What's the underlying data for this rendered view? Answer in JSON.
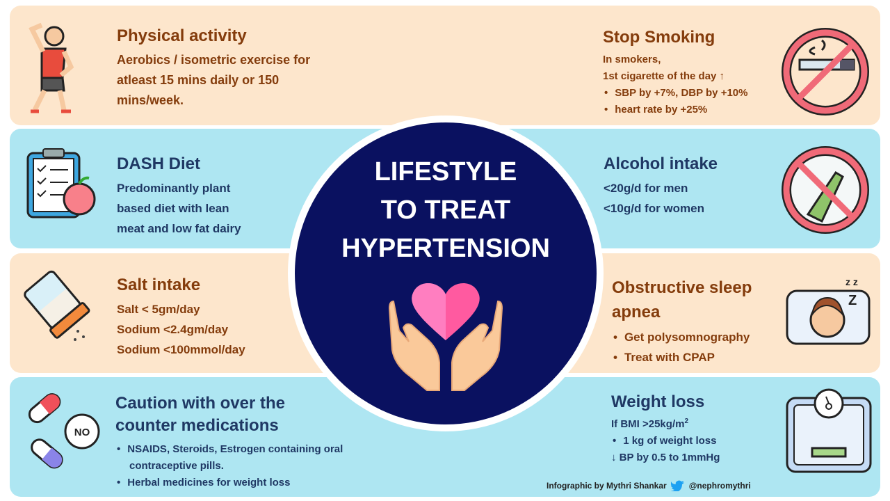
{
  "center": {
    "lines": [
      "LIFESTYLE",
      "TO TREAT",
      "HYPERTENSION"
    ]
  },
  "physical": {
    "title": "Physical activity",
    "lines": [
      "Aerobics / isometric exercise for",
      "atleast 15 mins daily or 150",
      "mins/week."
    ]
  },
  "smoking": {
    "title": "Stop Smoking",
    "lines": [
      "In smokers,",
      "1st cigarette of the day ↑"
    ],
    "bullets": [
      "SBP by +7%, DBP by +10%",
      "heart rate by +25%"
    ]
  },
  "dash": {
    "title": "DASH Diet",
    "lines": [
      "Predominantly plant",
      "based diet with lean",
      "meat and low fat dairy"
    ]
  },
  "alcohol": {
    "title": "Alcohol intake",
    "lines": [
      "<20g/d for men",
      "<10g/d for women"
    ]
  },
  "salt": {
    "title": "Salt intake",
    "lines": [
      "Salt < 5gm/day",
      "Sodium <2.4gm/day",
      "Sodium <100mmol/day"
    ]
  },
  "sleep": {
    "title_lines": [
      "Obstructive sleep",
      "apnea"
    ],
    "bullets": [
      "Get polysomnography",
      "Treat with CPAP"
    ]
  },
  "meds": {
    "title_lines": [
      "Caution with over the",
      "counter medications"
    ],
    "bullets": [
      "NSAIDS, Steroids, Estrogen containing oral",
      "Herbal medicines for weight loss"
    ],
    "bullet1_cont": "contraceptive pills.",
    "no_label": "NO"
  },
  "weight": {
    "title": "Weight loss",
    "bmi": "If BMI >25kg/m",
    "sup": "2",
    "bullets": [
      "1 kg of weight loss"
    ],
    "line": "↓ BP by 0.5 to 1mmHg"
  },
  "credit": {
    "author": "Infographic by Mythri Shankar",
    "handle": "@nephromythri"
  },
  "colors": {
    "peach": "#fde6cc",
    "blue": "#aee6f2",
    "navy": "#0a1160",
    "brown": "#843c0c",
    "darkblue": "#1f3864"
  }
}
